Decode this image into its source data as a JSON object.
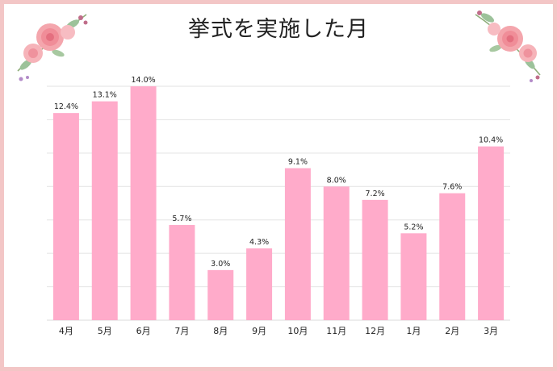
{
  "title": "挙式を実施した月",
  "colors": {
    "bar": "#ffabca",
    "grid": "#e2e2e2",
    "frame": "#f3c6c6",
    "text": "#222222"
  },
  "decor": {
    "left": "rose-bouquet-icon",
    "right": "rose-bouquet-icon"
  },
  "chart_data": {
    "type": "bar",
    "title": "挙式を実施した月",
    "xlabel": "",
    "ylabel": "",
    "categories": [
      "4月",
      "5月",
      "6月",
      "7月",
      "8月",
      "9月",
      "10月",
      "11月",
      "12月",
      "1月",
      "2月",
      "3月"
    ],
    "values": [
      12.4,
      13.1,
      14.0,
      5.7,
      3.0,
      4.3,
      9.1,
      8.0,
      7.2,
      5.2,
      7.6,
      10.4
    ],
    "value_labels": [
      "12.4%",
      "13.1%",
      "14.0%",
      "5.7%",
      "3.0%",
      "4.3%",
      "9.1%",
      "8.0%",
      "7.2%",
      "5.2%",
      "7.6%",
      "10.4%"
    ],
    "ylim": [
      0,
      14
    ],
    "grid": true,
    "legend": "none"
  }
}
